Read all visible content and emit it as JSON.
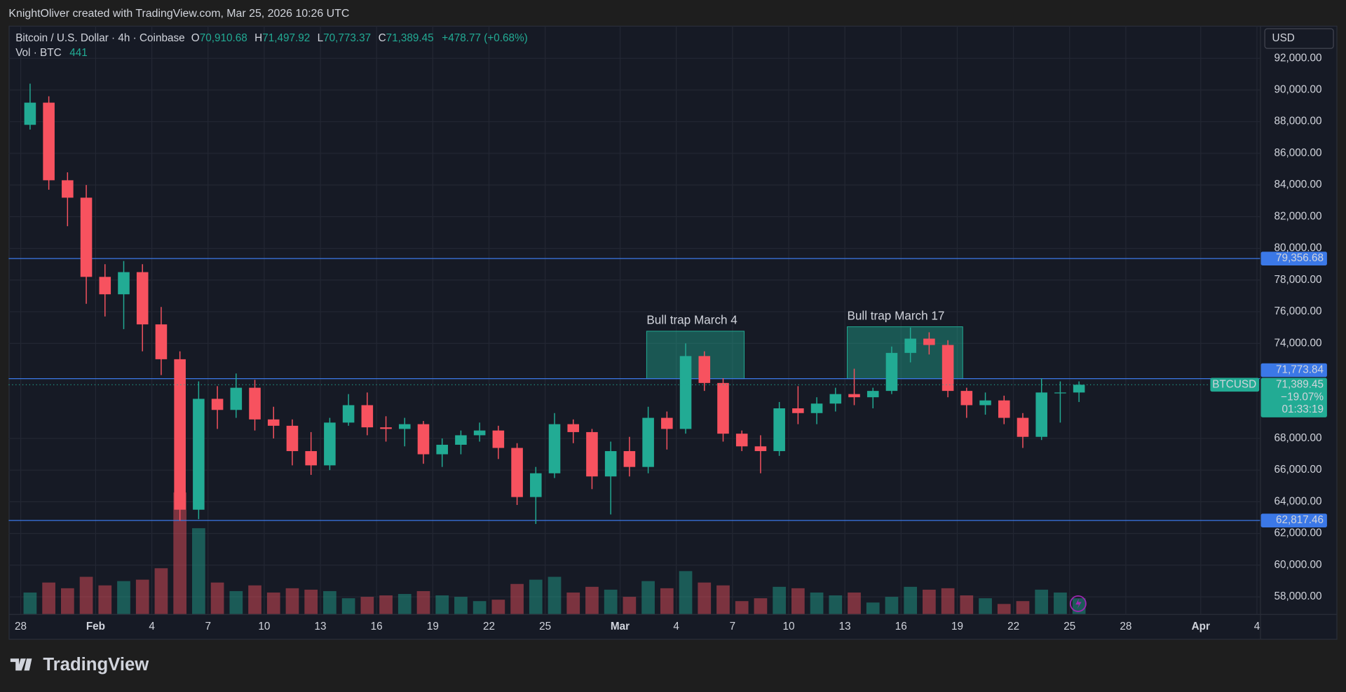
{
  "header": {
    "credit": "KnightOliver created with TradingView.com, Mar 25, 2026 10:26 UTC"
  },
  "footer": {
    "brand": "TradingView"
  },
  "chart_data": {
    "type": "candlestick",
    "legend": {
      "symbol": "Bitcoin / U.S. Dollar · 4h · Coinbase",
      "ohlc": [
        {
          "label": "O",
          "value": "70,910.68"
        },
        {
          "label": "H",
          "value": "71,497.92"
        },
        {
          "label": "L",
          "value": "70,773.37"
        },
        {
          "label": "C",
          "value": "71,389.45"
        }
      ],
      "change": "+478.77 (+0.68%)",
      "volume_label": "Vol · BTC",
      "volume": "441"
    },
    "currency": "USD",
    "x": [
      "2026-01-28",
      "2026-01-29",
      "2026-01-30",
      "2026-01-31",
      "2026-02-01",
      "2026-02-02",
      "2026-02-03",
      "2026-02-04",
      "2026-02-05",
      "2026-02-06",
      "2026-02-07",
      "2026-02-08",
      "2026-02-09",
      "2026-02-10",
      "2026-02-11",
      "2026-02-12",
      "2026-02-13",
      "2026-02-14",
      "2026-02-15",
      "2026-02-16",
      "2026-02-17",
      "2026-02-18",
      "2026-02-19",
      "2026-02-20",
      "2026-02-21",
      "2026-02-22",
      "2026-02-23",
      "2026-02-24",
      "2026-02-25",
      "2026-02-26",
      "2026-02-27",
      "2026-02-28",
      "2026-03-01",
      "2026-03-02",
      "2026-03-03",
      "2026-03-04",
      "2026-03-05",
      "2026-03-06",
      "2026-03-07",
      "2026-03-08",
      "2026-03-09",
      "2026-03-10",
      "2026-03-11",
      "2026-03-12",
      "2026-03-13",
      "2026-03-14",
      "2026-03-15",
      "2026-03-16",
      "2026-03-17",
      "2026-03-18",
      "2026-03-19",
      "2026-03-20",
      "2026-03-21",
      "2026-03-22",
      "2026-03-23",
      "2026-03-24",
      "2026-03-25"
    ],
    "open": [
      87800,
      89200,
      84300,
      83200,
      78200,
      77100,
      78500,
      75200,
      73000,
      63500,
      70500,
      69800,
      71200,
      69200,
      68800,
      67200,
      66300,
      69000,
      70100,
      68700,
      68600,
      68900,
      67000,
      67600,
      68200,
      68500,
      67400,
      64300,
      65800,
      68900,
      68400,
      65600,
      67200,
      66200,
      69300,
      68600,
      73200,
      71500,
      68300,
      67500,
      67200,
      69900,
      69600,
      70200,
      70800,
      70600,
      71000,
      73400,
      74300,
      73900,
      71000,
      70100,
      70400,
      69300,
      68100,
      70900,
      70900
    ],
    "high": [
      90400,
      89600,
      84800,
      84000,
      79000,
      79200,
      79000,
      76300,
      73500,
      71600,
      71300,
      72100,
      71700,
      70000,
      69200,
      68400,
      69300,
      70800,
      70900,
      69400,
      69300,
      69100,
      68000,
      68500,
      69000,
      68800,
      67700,
      66200,
      69600,
      69200,
      68600,
      67800,
      68100,
      70000,
      69700,
      74000,
      73500,
      71800,
      68500,
      68200,
      70300,
      71300,
      70600,
      71200,
      72400,
      71200,
      73800,
      75000,
      74700,
      74200,
      71200,
      70900,
      70700,
      69600,
      71800,
      71600,
      71600
    ],
    "low": [
      87500,
      83700,
      81400,
      76500,
      75700,
      74900,
      73500,
      72000,
      62800,
      62900,
      68600,
      69300,
      68500,
      68000,
      66300,
      65700,
      66000,
      68800,
      68200,
      67800,
      67500,
      66400,
      66200,
      67000,
      67800,
      66700,
      63800,
      62600,
      65500,
      67700,
      64800,
      63200,
      65600,
      65800,
      67300,
      68300,
      71000,
      67800,
      67200,
      65800,
      66900,
      68900,
      68900,
      69700,
      70100,
      69900,
      70800,
      72800,
      73300,
      70600,
      69300,
      69500,
      68900,
      67400,
      67900,
      69000,
      70300
    ],
    "close": [
      89200,
      84300,
      83200,
      78200,
      77100,
      78500,
      75200,
      73000,
      63500,
      70500,
      69800,
      71200,
      69200,
      68800,
      67200,
      66300,
      69000,
      70100,
      68700,
      68600,
      68900,
      67000,
      67600,
      68200,
      68500,
      67400,
      64300,
      65800,
      68900,
      68400,
      65600,
      67200,
      66200,
      69300,
      68600,
      73200,
      71500,
      68300,
      67500,
      67200,
      69900,
      69600,
      70200,
      70800,
      70600,
      71000,
      73400,
      74300,
      73900,
      71000,
      70100,
      70400,
      69300,
      68100,
      70900,
      70900,
      71389.45
    ],
    "volume": [
      1500,
      2200,
      1800,
      2600,
      2000,
      2300,
      2400,
      3200,
      8500,
      6000,
      2200,
      1600,
      2000,
      1500,
      1800,
      1700,
      1600,
      1100,
      1200,
      1300,
      1400,
      1600,
      1300,
      1200,
      900,
      1000,
      2100,
      2400,
      2600,
      1500,
      1900,
      1700,
      1200,
      2300,
      1800,
      3000,
      2200,
      2000,
      900,
      1100,
      1900,
      1800,
      1500,
      1300,
      1500,
      800,
      1200,
      1900,
      1700,
      1800,
      1300,
      1100,
      700,
      900,
      1700,
      1500,
      1100
    ],
    "vol_lim": [
      0,
      9000
    ],
    "up_color": "#22ab94",
    "down_color": "#f7525f",
    "xlim": [
      "2026-01-27T08:36",
      "2026-04-04T04:00"
    ],
    "xticks": [
      {
        "value": "2026-01-28",
        "label": "28"
      },
      {
        "value": "2026-02-01",
        "label": "Feb"
      },
      {
        "value": "2026-02-04",
        "label": "4"
      },
      {
        "value": "2026-02-07",
        "label": "7"
      },
      {
        "value": "2026-02-10",
        "label": "10"
      },
      {
        "value": "2026-02-13",
        "label": "13"
      },
      {
        "value": "2026-02-16",
        "label": "16"
      },
      {
        "value": "2026-02-19",
        "label": "19"
      },
      {
        "value": "2026-02-22",
        "label": "22"
      },
      {
        "value": "2026-02-25",
        "label": "25"
      },
      {
        "value": "2026-03-01",
        "label": "Mar"
      },
      {
        "value": "2026-03-04",
        "label": "4"
      },
      {
        "value": "2026-03-07",
        "label": "7"
      },
      {
        "value": "2026-03-10",
        "label": "10"
      },
      {
        "value": "2026-03-13",
        "label": "13"
      },
      {
        "value": "2026-03-16",
        "label": "16"
      },
      {
        "value": "2026-03-19",
        "label": "19"
      },
      {
        "value": "2026-03-22",
        "label": "22"
      },
      {
        "value": "2026-03-25",
        "label": "25"
      },
      {
        "value": "2026-03-28",
        "label": "28"
      },
      {
        "value": "2026-04-01",
        "label": "Apr"
      },
      {
        "value": "2026-04-04",
        "label": "4"
      }
    ],
    "ylim": [
      56917,
      94057
    ],
    "yticks": [
      {
        "value": 92000,
        "label": "92,000.00"
      },
      {
        "value": 90000,
        "label": "90,000.00"
      },
      {
        "value": 88000,
        "label": "88,000.00"
      },
      {
        "value": 86000,
        "label": "86,000.00"
      },
      {
        "value": 84000,
        "label": "84,000.00"
      },
      {
        "value": 82000,
        "label": "82,000.00"
      },
      {
        "value": 80000,
        "label": "80,000.00"
      },
      {
        "value": 78000,
        "label": "78,000.00"
      },
      {
        "value": 76000,
        "label": "76,000.00"
      },
      {
        "value": 74000,
        "label": "74,000.00"
      },
      {
        "value": 68000,
        "label": "68,000.00"
      },
      {
        "value": 66000,
        "label": "66,000.00"
      },
      {
        "value": 64000,
        "label": "64,000.00"
      },
      {
        "value": 62000,
        "label": "62,000.00"
      },
      {
        "value": 60000,
        "label": "60,000.00"
      },
      {
        "value": 58000,
        "label": "58,000.00"
      }
    ],
    "grid": true,
    "hlines": [
      {
        "value": 79356.68,
        "label": "79,356.68"
      },
      {
        "value": 71773.84,
        "label": "71,773.84"
      },
      {
        "value": 62817.46,
        "label": "62,817.46"
      }
    ],
    "hline_color": "#3b78e7",
    "last_price": {
      "symbol": "BTCUSD",
      "value": 71389.45,
      "value_label": "71,389.45",
      "change": "−19.07%",
      "countdown": "01:33:19"
    },
    "annotations": [
      {
        "text": "Bull trap March 4",
        "x": [
          "2026-03-02T10:00",
          "2026-03-07T15:00"
        ],
        "y": [
          71773.84,
          74770
        ]
      },
      {
        "text": "Bull trap March 17",
        "x": [
          "2026-03-13T03:00",
          "2026-03-19T07:00"
        ],
        "y": [
          71773.84,
          75050
        ]
      }
    ],
    "annotation_color": "#ab47bc"
  }
}
